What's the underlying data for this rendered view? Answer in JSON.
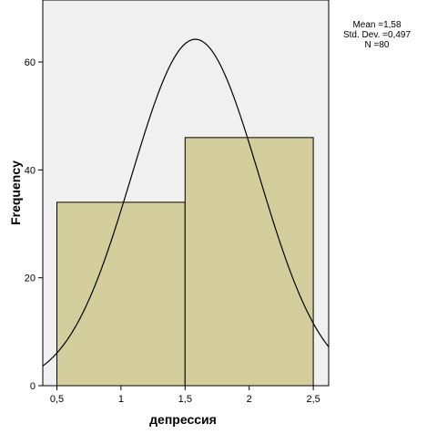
{
  "chart_data": {
    "type": "bar",
    "subtype": "histogram",
    "bins": [
      {
        "x0": 0.5,
        "x1": 1.5,
        "value": 34
      },
      {
        "x0": 1.5,
        "x1": 2.5,
        "value": 46
      }
    ],
    "normal_curve": {
      "mean": 1.58,
      "std": 0.497,
      "n": 80,
      "bin_width": 1
    },
    "xlabel": "депрессия",
    "ylabel": "Frequency",
    "xlim": [
      0.39,
      2.62
    ],
    "ylim": [
      0,
      71.5
    ],
    "xticks": [
      0.5,
      1,
      1.5,
      2,
      2.5
    ],
    "xtick_labels": [
      "0,5",
      "1",
      "1,5",
      "2",
      "2,5"
    ],
    "yticks": [
      0,
      20,
      40,
      60
    ],
    "ytick_labels": [
      "0",
      "20",
      "40",
      "60"
    ],
    "stats_lines": [
      "Mean =1,58",
      "Std. Dev. =0,497",
      "N =80"
    ],
    "colors": {
      "bar_fill": "#d3ce9b",
      "plot_bg": "#f0f0f0",
      "curve": "#000000"
    },
    "grid": false,
    "legend": "none"
  }
}
